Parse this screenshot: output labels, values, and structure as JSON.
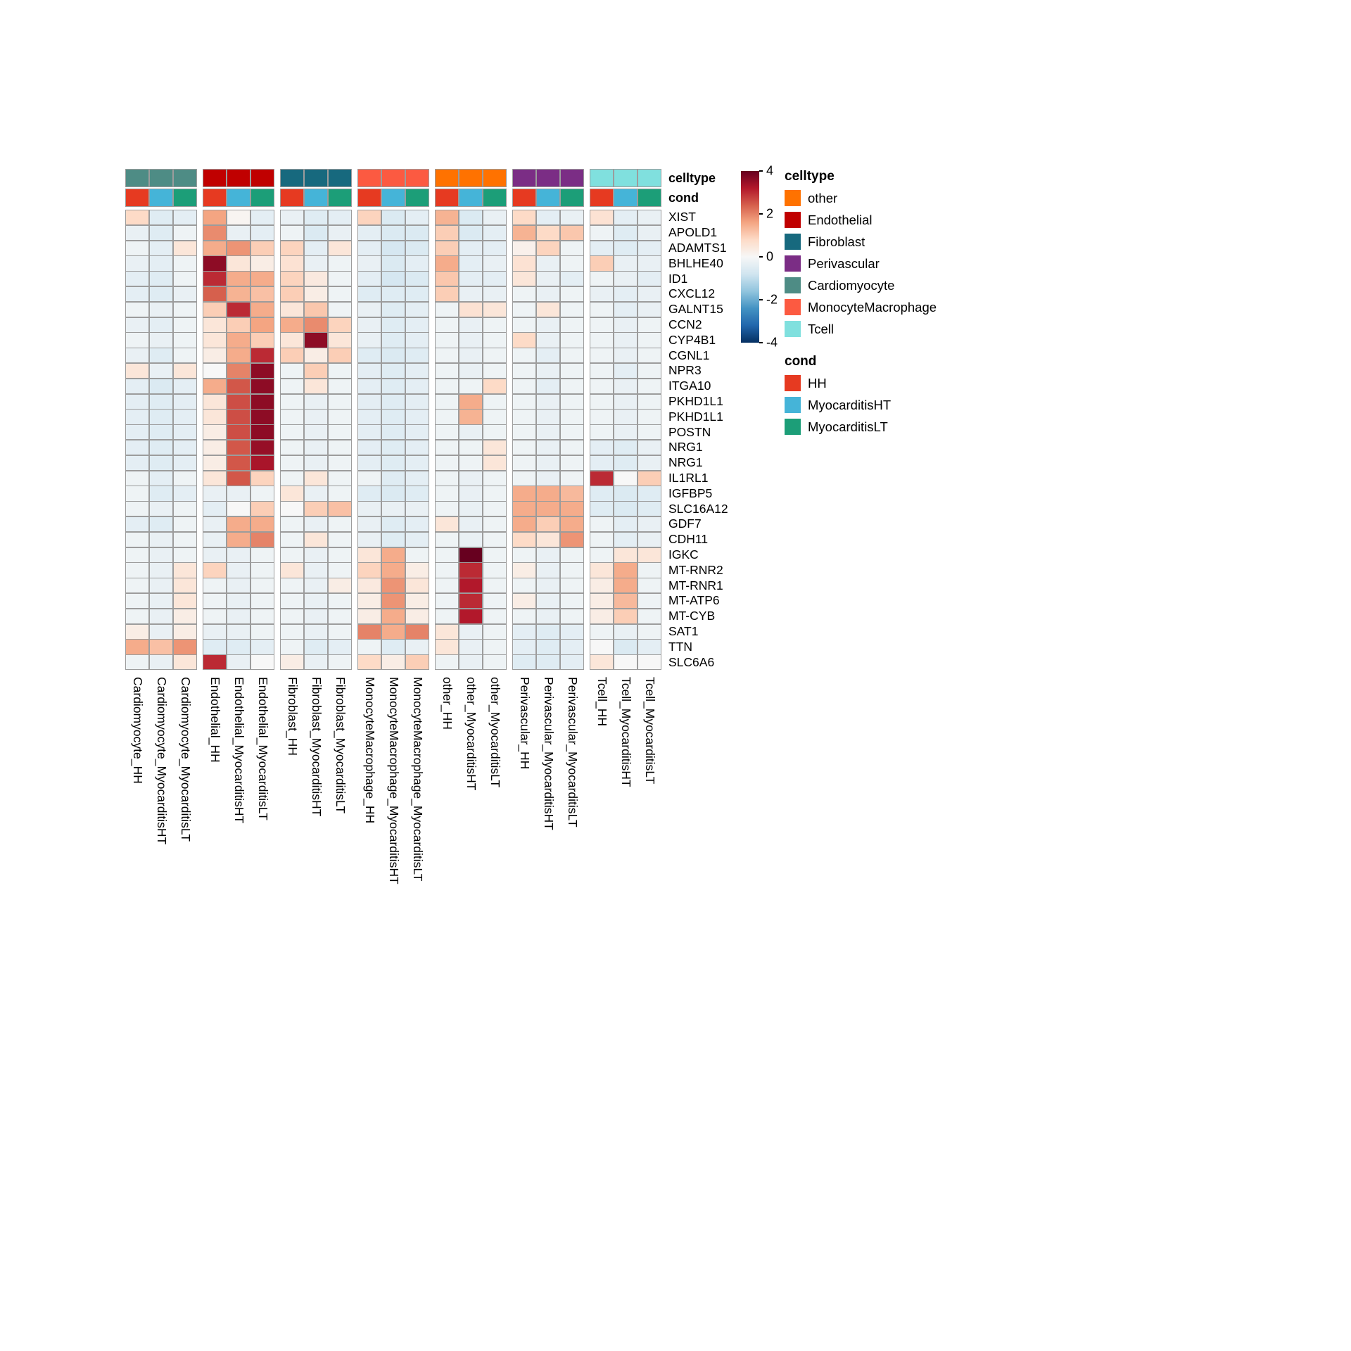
{
  "chart_data": {
    "type": "heatmap",
    "value_range": [
      -4,
      4
    ],
    "colorbar_ticks": [
      4,
      2,
      0,
      -2,
      -4
    ],
    "annotation_labels": {
      "celltype": "celltype",
      "cond": "cond"
    },
    "column_groups": [
      {
        "name": "Cardiomyocyte",
        "color": "#4E8C85"
      },
      {
        "name": "Endothelial",
        "color": "#C00000"
      },
      {
        "name": "Fibroblast",
        "color": "#17697E"
      },
      {
        "name": "MonocyteMacrophage",
        "color": "#FC5A41"
      },
      {
        "name": "other",
        "color": "#FF7200"
      },
      {
        "name": "Perivascular",
        "color": "#7B2D85"
      },
      {
        "name": "Tcell",
        "color": "#80E0DE"
      }
    ],
    "conditions": [
      {
        "name": "HH",
        "color": "#E63A21"
      },
      {
        "name": "MyocarditisHT",
        "color": "#45B4D8"
      },
      {
        "name": "MyocarditisLT",
        "color": "#1C9E78"
      }
    ],
    "columns": [
      "Cardiomyocyte_HH",
      "Cardiomyocyte_MyocarditisHT",
      "Cardiomyocyte_MyocarditisLT",
      "Endothelial_HH",
      "Endothelial_MyocarditisHT",
      "Endothelial_MyocarditisLT",
      "Fibroblast_HH",
      "Fibroblast_MyocarditisHT",
      "Fibroblast_MyocarditisLT",
      "MonocyteMacrophage_HH",
      "MonocyteMacrophage_MyocarditisHT",
      "MonocyteMacrophage_MyocarditisLT",
      "other_HH",
      "other_MyocarditisHT",
      "other_MyocarditisLT",
      "Perivascular_HH",
      "Perivascular_MyocarditisHT",
      "Perivascular_MyocarditisLT",
      "Tcell_HH",
      "Tcell_MyocarditisHT",
      "Tcell_MyocarditisLT"
    ],
    "genes": [
      "XIST",
      "APOLD1",
      "ADAMTS1",
      "BHLHE40",
      "ID1",
      "CXCL12",
      "GALNT15",
      "CCN2",
      "CYP4B1",
      "CGNL1",
      "NPR3",
      "ITGA10",
      "PKHD1L1",
      "PKHD1L1",
      "POSTN",
      "NRG1",
      "NRG1",
      "IL1RL1",
      "IGFBP5",
      "SLC16A12",
      "GDF7",
      "CDH11",
      "IGKC",
      "MT-RNR2",
      "MT-RNR1",
      "MT-ATP6",
      "MT-CYB",
      "SAT1",
      "TTN",
      "SLC6A6"
    ],
    "values": [
      [
        0.8,
        -0.5,
        -0.4,
        1.6,
        0.1,
        -0.4,
        -0.3,
        -0.5,
        -0.4,
        0.9,
        -0.6,
        -0.4,
        1.4,
        -0.6,
        -0.3,
        0.8,
        -0.4,
        -0.3,
        0.6,
        -0.4,
        -0.3
      ],
      [
        -0.3,
        -0.5,
        -0.2,
        1.9,
        -0.3,
        -0.4,
        -0.2,
        -0.6,
        -0.3,
        -0.4,
        -0.6,
        -0.6,
        1.0,
        -0.6,
        -0.4,
        1.4,
        0.8,
        1.1,
        -0.2,
        -0.5,
        -0.3
      ],
      [
        -0.2,
        -0.4,
        0.5,
        1.5,
        1.8,
        1.0,
        0.9,
        -0.4,
        0.5,
        -0.4,
        -0.7,
        -0.6,
        1.0,
        -0.4,
        -0.4,
        0.2,
        0.9,
        -0.2,
        -0.4,
        -0.5,
        -0.4
      ],
      [
        -0.3,
        -0.4,
        -0.2,
        3.6,
        0.5,
        0.3,
        0.6,
        -0.3,
        -0.2,
        -0.3,
        -0.6,
        -0.4,
        1.5,
        -0.4,
        -0.3,
        0.6,
        -0.3,
        -0.2,
        1.0,
        -0.3,
        -0.3
      ],
      [
        -0.4,
        -0.5,
        -0.2,
        3.0,
        1.5,
        1.5,
        0.9,
        0.4,
        -0.2,
        -0.4,
        -0.7,
        -0.6,
        1.1,
        -0.4,
        -0.4,
        0.5,
        -0.3,
        -0.4,
        -0.2,
        -0.3,
        -0.4
      ],
      [
        -0.4,
        -0.5,
        -0.3,
        2.4,
        1.4,
        1.2,
        1.0,
        0.3,
        -0.2,
        -0.5,
        -0.5,
        -0.5,
        1.0,
        -0.3,
        -0.3,
        -0.2,
        -0.3,
        -0.2,
        -0.3,
        -0.4,
        -0.3
      ],
      [
        -0.2,
        -0.3,
        -0.2,
        1.0,
        3.0,
        1.5,
        0.5,
        1.1,
        -0.2,
        -0.3,
        -0.5,
        -0.4,
        -0.2,
        0.6,
        0.5,
        -0.2,
        0.5,
        -0.2,
        -0.2,
        -0.4,
        -0.3
      ],
      [
        -0.3,
        -0.4,
        -0.2,
        0.5,
        1.0,
        1.6,
        1.5,
        1.9,
        0.9,
        -0.3,
        -0.5,
        -0.4,
        -0.2,
        -0.3,
        -0.2,
        -0.2,
        -0.3,
        -0.2,
        -0.2,
        -0.3,
        -0.2
      ],
      [
        -0.2,
        -0.3,
        -0.2,
        0.5,
        1.5,
        1.0,
        0.5,
        3.6,
        0.5,
        -0.3,
        -0.5,
        -0.4,
        -0.2,
        -0.3,
        -0.2,
        0.8,
        -0.3,
        -0.2,
        -0.2,
        -0.3,
        -0.2
      ],
      [
        -0.3,
        -0.5,
        -0.2,
        0.3,
        1.5,
        3.0,
        1.0,
        0.3,
        1.0,
        -0.5,
        -0.6,
        -0.5,
        -0.2,
        -0.3,
        -0.2,
        -0.2,
        -0.4,
        -0.2,
        -0.2,
        -0.3,
        -0.2
      ],
      [
        0.5,
        -0.3,
        0.5,
        0.0,
        2.0,
        3.6,
        -0.2,
        1.0,
        -0.2,
        -0.4,
        -0.5,
        -0.4,
        -0.2,
        -0.3,
        -0.2,
        -0.2,
        -0.3,
        -0.2,
        -0.2,
        -0.4,
        -0.2
      ],
      [
        -0.4,
        -0.6,
        -0.4,
        1.5,
        2.5,
        3.6,
        -0.2,
        0.5,
        -0.2,
        -0.4,
        -0.5,
        -0.4,
        -0.2,
        -0.2,
        0.8,
        -0.2,
        -0.4,
        -0.2,
        -0.2,
        -0.3,
        -0.2
      ],
      [
        -0.4,
        -0.5,
        -0.4,
        0.5,
        2.6,
        3.6,
        -0.2,
        -0.3,
        -0.2,
        -0.4,
        -0.5,
        -0.4,
        -0.2,
        1.5,
        -0.2,
        -0.2,
        -0.3,
        -0.2,
        -0.2,
        -0.3,
        -0.2
      ],
      [
        -0.4,
        -0.5,
        -0.4,
        0.5,
        2.6,
        3.6,
        -0.2,
        -0.3,
        -0.2,
        -0.4,
        -0.5,
        -0.4,
        -0.2,
        1.4,
        -0.2,
        -0.2,
        -0.3,
        -0.2,
        -0.2,
        -0.3,
        -0.2
      ],
      [
        -0.4,
        -0.5,
        -0.4,
        0.3,
        2.6,
        3.6,
        -0.2,
        -0.3,
        -0.2,
        -0.4,
        -0.5,
        -0.4,
        -0.2,
        -0.3,
        -0.2,
        -0.2,
        -0.3,
        -0.2,
        -0.2,
        -0.3,
        -0.2
      ],
      [
        -0.4,
        -0.5,
        -0.4,
        0.3,
        2.5,
        3.5,
        -0.2,
        -0.3,
        -0.2,
        -0.4,
        -0.5,
        -0.4,
        -0.2,
        -0.2,
        0.5,
        -0.2,
        -0.3,
        -0.2,
        -0.4,
        -0.5,
        -0.3
      ],
      [
        -0.4,
        -0.5,
        -0.4,
        0.3,
        2.5,
        3.3,
        -0.2,
        -0.3,
        -0.2,
        -0.4,
        -0.5,
        -0.4,
        -0.2,
        -0.2,
        0.5,
        -0.2,
        -0.3,
        -0.2,
        -0.4,
        -0.5,
        -0.3
      ],
      [
        -0.2,
        -0.4,
        -0.2,
        0.5,
        2.5,
        0.9,
        -0.2,
        0.5,
        -0.2,
        -0.2,
        -0.5,
        -0.4,
        -0.2,
        -0.3,
        -0.2,
        -0.2,
        -0.3,
        -0.2,
        3.0,
        0.0,
        1.0
      ],
      [
        -0.2,
        -0.5,
        -0.4,
        -0.3,
        -0.3,
        -0.2,
        0.5,
        -0.3,
        -0.2,
        -0.5,
        -0.6,
        -0.5,
        -0.2,
        -0.3,
        -0.2,
        1.5,
        1.5,
        1.3,
        -0.5,
        -0.6,
        -0.5
      ],
      [
        -0.2,
        -0.3,
        -0.2,
        -0.4,
        0.0,
        1.0,
        0.0,
        1.0,
        1.2,
        -0.3,
        -0.3,
        -0.3,
        -0.2,
        -0.3,
        -0.2,
        1.5,
        1.5,
        1.5,
        -0.5,
        -0.6,
        -0.5
      ],
      [
        -0.4,
        -0.5,
        -0.2,
        -0.3,
        1.5,
        1.5,
        -0.2,
        -0.3,
        -0.2,
        -0.3,
        -0.5,
        -0.4,
        0.5,
        -0.3,
        -0.2,
        1.5,
        1.0,
        1.5,
        -0.2,
        -0.4,
        -0.3
      ],
      [
        -0.2,
        -0.3,
        -0.2,
        -0.3,
        1.5,
        2.0,
        -0.2,
        0.5,
        -0.2,
        -0.3,
        -0.5,
        -0.4,
        -0.2,
        -0.3,
        -0.2,
        0.8,
        0.5,
        1.8,
        -0.2,
        -0.4,
        -0.3
      ],
      [
        -0.2,
        -0.3,
        -0.2,
        -0.3,
        -0.3,
        -0.2,
        -0.2,
        -0.3,
        -0.2,
        0.5,
        1.5,
        -0.2,
        -0.2,
        4.0,
        -0.2,
        -0.2,
        -0.3,
        -0.2,
        -0.2,
        0.5,
        0.5
      ],
      [
        -0.2,
        -0.3,
        0.5,
        0.9,
        -0.3,
        -0.2,
        0.5,
        -0.3,
        -0.2,
        0.9,
        1.5,
        0.3,
        -0.2,
        3.0,
        -0.2,
        0.3,
        -0.3,
        -0.2,
        0.5,
        1.5,
        -0.2
      ],
      [
        -0.2,
        -0.3,
        0.5,
        -0.2,
        -0.3,
        -0.2,
        -0.2,
        -0.3,
        0.3,
        0.4,
        1.8,
        0.5,
        -0.2,
        3.2,
        -0.2,
        -0.2,
        -0.3,
        -0.2,
        0.3,
        1.5,
        -0.2
      ],
      [
        -0.2,
        -0.3,
        0.5,
        -0.2,
        -0.3,
        -0.2,
        -0.2,
        -0.3,
        -0.2,
        0.3,
        1.8,
        0.3,
        -0.2,
        3.0,
        -0.2,
        0.3,
        -0.3,
        -0.2,
        0.3,
        1.3,
        -0.2
      ],
      [
        -0.2,
        -0.3,
        0.3,
        -0.2,
        -0.3,
        -0.2,
        -0.2,
        -0.3,
        -0.2,
        0.3,
        1.5,
        0.3,
        -0.2,
        3.2,
        -0.2,
        -0.2,
        -0.3,
        -0.2,
        0.3,
        1.0,
        -0.2
      ],
      [
        0.3,
        -0.3,
        0.3,
        -0.3,
        -0.3,
        -0.2,
        -0.2,
        -0.3,
        -0.2,
        2.0,
        1.5,
        2.0,
        0.5,
        -0.3,
        -0.2,
        -0.4,
        -0.5,
        -0.4,
        -0.2,
        -0.3,
        -0.2
      ],
      [
        1.5,
        1.2,
        1.8,
        -0.5,
        -0.5,
        -0.4,
        -0.2,
        -0.5,
        -0.4,
        -0.2,
        -0.5,
        -0.3,
        0.5,
        -0.3,
        -0.2,
        -0.4,
        -0.5,
        -0.4,
        0.0,
        -0.6,
        -0.4
      ],
      [
        -0.2,
        -0.3,
        0.5,
        3.0,
        -0.3,
        0.0,
        0.3,
        -0.3,
        -0.2,
        0.8,
        0.3,
        1.0,
        -0.2,
        -0.3,
        -0.2,
        -0.5,
        -0.5,
        -0.4,
        0.5,
        0.0,
        0.0
      ]
    ],
    "color_scale": {
      "stops": [
        {
          "value": -4.0,
          "color": "#053061"
        },
        {
          "value": -3.2,
          "color": "#2166AC"
        },
        {
          "value": -2.4,
          "color": "#4393C3"
        },
        {
          "value": -1.6,
          "color": "#92C5DE"
        },
        {
          "value": -0.8,
          "color": "#D1E5F0"
        },
        {
          "value": 0.0,
          "color": "#F7F7F7"
        },
        {
          "value": 0.8,
          "color": "#FDDBC7"
        },
        {
          "value": 1.6,
          "color": "#F4A582"
        },
        {
          "value": 2.4,
          "color": "#D6604D"
        },
        {
          "value": 3.2,
          "color": "#B2182B"
        },
        {
          "value": 4.0,
          "color": "#67001F"
        }
      ]
    },
    "legends": {
      "celltype": {
        "title": "celltype",
        "items": [
          {
            "label": "other",
            "color": "#FF7200"
          },
          {
            "label": "Endothelial",
            "color": "#C00000"
          },
          {
            "label": "Fibroblast",
            "color": "#17697E"
          },
          {
            "label": "Perivascular",
            "color": "#7B2D85"
          },
          {
            "label": "Cardiomyocyte",
            "color": "#4E8C85"
          },
          {
            "label": "MonocyteMacrophage",
            "color": "#FC5A41"
          },
          {
            "label": "Tcell",
            "color": "#80E0DE"
          }
        ]
      },
      "cond": {
        "title": "cond",
        "items": [
          {
            "label": "HH",
            "color": "#E63A21"
          },
          {
            "label": "MyocarditisHT",
            "color": "#45B4D8"
          },
          {
            "label": "MyocarditisLT",
            "color": "#1C9E78"
          }
        ]
      }
    }
  }
}
